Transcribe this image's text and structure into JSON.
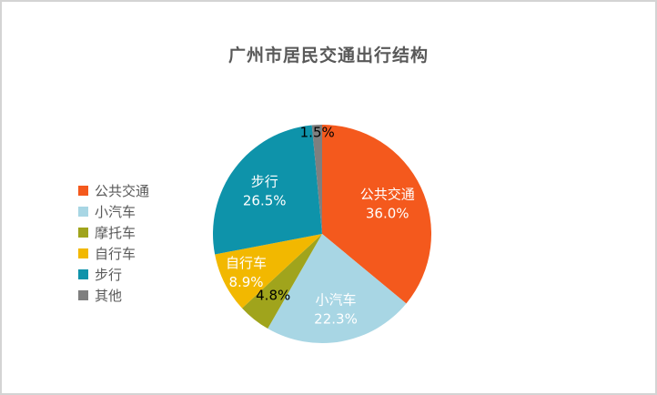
{
  "title": "广州市居民交通出行结构",
  "style": {
    "background": "#ffffff",
    "frame_border_color": "#d4d4d4",
    "title_color": "#595959",
    "legend_text_color": "#595959"
  },
  "chart_data": {
    "type": "pie",
    "title": "广州市居民交通出行结构",
    "legend_position": "left",
    "start_angle_deg": 0,
    "direction": "clockwise",
    "unit": "percent",
    "slices": [
      {
        "name": "公共交通",
        "value": 36.0,
        "percent_label": "36.0%",
        "color": "#F4591D",
        "label": {
          "show_name": true,
          "text_color": "#ffffff",
          "radius_frac": 0.66
        }
      },
      {
        "name": "小汽车",
        "value": 22.3,
        "percent_label": "22.3%",
        "color": "#A8D6E4",
        "label": {
          "show_name": true,
          "text_color": "#ffffff",
          "radius_frac": 0.7
        }
      },
      {
        "name": "摩托车",
        "value": 4.8,
        "percent_label": "4.8%",
        "color": "#A0A41C",
        "label": {
          "show_name": false,
          "text_color": "#000000",
          "radius_frac": 0.72
        }
      },
      {
        "name": "自行车",
        "value": 8.9,
        "percent_label": "8.9%",
        "color": "#F2B800",
        "label": {
          "show_name": true,
          "text_color": "#ffffff",
          "radius_frac": 0.78
        }
      },
      {
        "name": "步行",
        "value": 26.5,
        "percent_label": "26.5%",
        "color": "#0E93AA",
        "label": {
          "show_name": true,
          "text_color": "#ffffff",
          "radius_frac": 0.66
        }
      },
      {
        "name": "其他",
        "value": 1.5,
        "percent_label": "1.5%",
        "color": "#7F7F7F",
        "label": {
          "show_name": false,
          "text_color": "#000000",
          "radius_frac": 0.93
        }
      }
    ]
  }
}
